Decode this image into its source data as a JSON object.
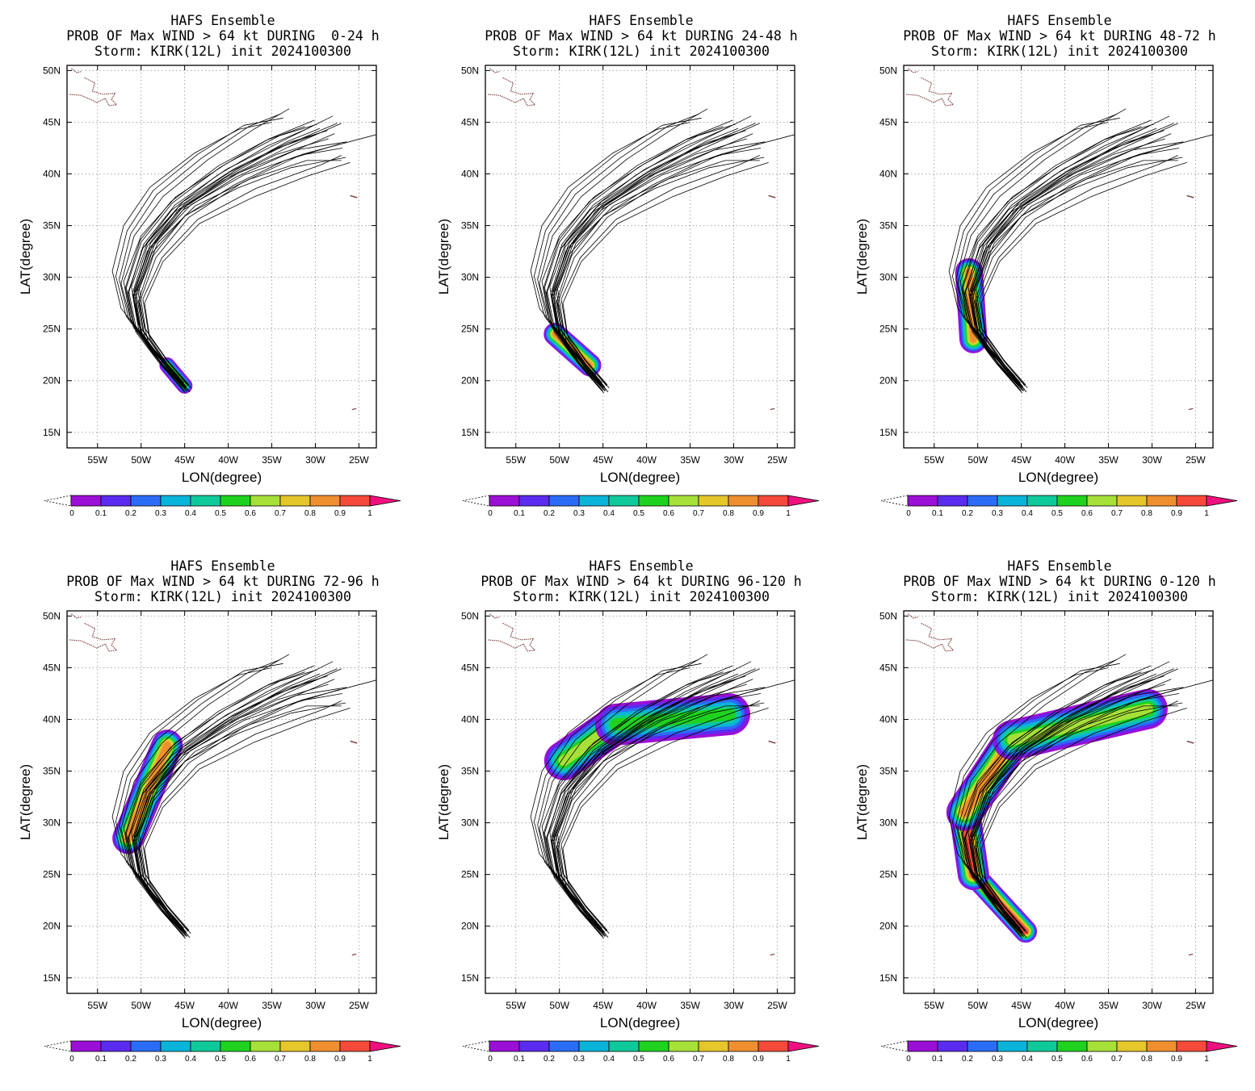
{
  "panels": [
    {
      "title_lines": [
        "HAFS Ensemble",
        "PROB OF Max WIND > 64 kt DURING  0-24 h",
        "Storm: KIRK(12L) init 2024100300"
      ],
      "xlabel": "LON(degree)",
      "ylabel": "LAT(degree)",
      "prob_fields": [
        {
          "start": [
            -45,
            19.5
          ],
          "end": [
            -47,
            21.5
          ],
          "width": 1.8,
          "peak": 0.6
        }
      ]
    },
    {
      "title_lines": [
        "HAFS Ensemble",
        "PROB OF Max WIND > 64 kt DURING 24-48 h",
        "Storm: KIRK(12L) init 2024100300"
      ],
      "xlabel": "LON(degree)",
      "ylabel": "LAT(degree)",
      "prob_fields": [
        {
          "start": [
            -46.5,
            21.5
          ],
          "end": [
            -50.5,
            24.5
          ],
          "width": 2.6,
          "peak": 0.85
        }
      ]
    },
    {
      "title_lines": [
        "HAFS Ensemble",
        "PROB OF Max WIND > 64 kt DURING 48-72 h",
        "Storm: KIRK(12L) init 2024100300"
      ],
      "xlabel": "LON(degree)",
      "ylabel": "LAT(degree)",
      "prob_fields": [
        {
          "start": [
            -50.5,
            24.0
          ],
          "end": [
            -51.0,
            30.5
          ],
          "width": 3.2,
          "peak": 0.85
        }
      ]
    },
    {
      "title_lines": [
        "HAFS Ensemble",
        "PROB OF Max WIND > 64 kt DURING 72-96 h",
        "Storm: KIRK(12L) init 2024100300"
      ],
      "xlabel": "LON(degree)",
      "ylabel": "LAT(degree)",
      "prob_fields": [
        {
          "start": [
            -51.5,
            28.5
          ],
          "end": [
            -47.0,
            37.5
          ],
          "width": 3.6,
          "peak": 0.8
        }
      ]
    },
    {
      "title_lines": [
        "HAFS Ensemble",
        "PROB OF Max WIND > 64 kt DURING 96-120 h",
        "Storm: KIRK(12L) init 2024100300"
      ],
      "xlabel": "LON(degree)",
      "ylabel": "LAT(degree)",
      "prob_fields": [
        {
          "start": [
            -49.5,
            36.0
          ],
          "end": [
            -43.5,
            39.5
          ],
          "width": 4.5,
          "peak": 0.7
        },
        {
          "start": [
            -43.5,
            39.5
          ],
          "end": [
            -30.5,
            40.5
          ],
          "width": 4.8,
          "peak": 0.6
        }
      ]
    },
    {
      "title_lines": [
        "HAFS Ensemble",
        "PROB OF Max WIND > 64 kt DURING 0-120 h",
        "Storm: KIRK(12L) init 2024100300"
      ],
      "xlabel": "LON(degree)",
      "ylabel": "LAT(degree)",
      "prob_fields": [
        {
          "start": [
            -44.5,
            19.5
          ],
          "end": [
            -50.5,
            25.0
          ],
          "width": 2.6,
          "peak": 0.9
        },
        {
          "start": [
            -50.5,
            25.0
          ],
          "end": [
            -51.5,
            31.0
          ],
          "width": 3.6,
          "peak": 0.9
        },
        {
          "start": [
            -51.5,
            31.0
          ],
          "end": [
            -46.0,
            38.0
          ],
          "width": 4.2,
          "peak": 0.85
        },
        {
          "start": [
            -46.0,
            38.0
          ],
          "end": [
            -30.5,
            41.0
          ],
          "width": 4.6,
          "peak": 0.7
        }
      ]
    }
  ],
  "lon_ticks": {
    "values": [
      -55,
      -50,
      -45,
      -40,
      -35,
      -30,
      -25
    ],
    "labels": [
      "55W",
      "50W",
      "45W",
      "40W",
      "35W",
      "30W",
      "25W"
    ]
  },
  "lat_ticks": {
    "values": [
      15,
      20,
      25,
      30,
      35,
      40,
      45,
      50
    ],
    "labels": [
      "15N",
      "20N",
      "25N",
      "30N",
      "35N",
      "40N",
      "45N",
      "50N"
    ]
  },
  "map_extent": {
    "lon_min": -58.5,
    "lon_max": -23,
    "lat_min": 13.5,
    "lat_max": 50.5
  },
  "colorbar": {
    "labels": [
      "0",
      "0.1",
      "0.2",
      "0.3",
      "0.4",
      "0.5",
      "0.6",
      "0.7",
      "0.8",
      "0.9",
      "1"
    ],
    "colors": [
      "#9b0fd6",
      "#5b2bf0",
      "#2b6cf6",
      "#0ab3d9",
      "#10c99a",
      "#1fd21f",
      "#a6e038",
      "#e5c62b",
      "#ef8f30",
      "#f54a3a"
    ],
    "over_color": "#f0107f"
  },
  "tracks": {
    "color": "#000000",
    "members": [
      [
        [
          -45.2,
          19.1
        ],
        [
          -47.8,
          21.6
        ],
        [
          -50.5,
          24.8
        ],
        [
          -51.4,
          28.6
        ],
        [
          -49.7,
          33.2
        ],
        [
          -46.1,
          37.0
        ],
        [
          -40.3,
          40.4
        ],
        [
          -34.0,
          43.1
        ],
        [
          -28.0,
          45.6
        ]
      ],
      [
        [
          -45.0,
          19.2
        ],
        [
          -47.6,
          21.5
        ],
        [
          -50.2,
          24.6
        ],
        [
          -51.0,
          28.4
        ],
        [
          -49.3,
          33.0
        ],
        [
          -45.7,
          36.8
        ],
        [
          -39.8,
          40.2
        ],
        [
          -33.6,
          42.7
        ],
        [
          -27.5,
          44.9
        ]
      ],
      [
        [
          -44.7,
          19.0
        ],
        [
          -47.0,
          21.2
        ],
        [
          -49.8,
          24.2
        ],
        [
          -50.8,
          27.9
        ],
        [
          -49.0,
          32.6
        ],
        [
          -45.2,
          36.5
        ],
        [
          -39.1,
          39.7
        ],
        [
          -32.8,
          42.1
        ],
        [
          -27.8,
          43.9
        ]
      ],
      [
        [
          -45.4,
          19.6
        ],
        [
          -48.1,
          22.1
        ],
        [
          -50.9,
          25.2
        ],
        [
          -51.8,
          29.0
        ],
        [
          -50.1,
          33.6
        ],
        [
          -46.6,
          37.3
        ],
        [
          -41.1,
          40.8
        ],
        [
          -35.3,
          43.4
        ],
        [
          -30.1,
          45.2
        ]
      ],
      [
        [
          -45.1,
          19.8
        ],
        [
          -47.9,
          22.4
        ],
        [
          -51.1,
          25.6
        ],
        [
          -52.3,
          29.4
        ],
        [
          -50.8,
          34.0
        ],
        [
          -47.5,
          37.8
        ],
        [
          -42.3,
          41.4
        ],
        [
          -36.9,
          44.4
        ],
        [
          -33.0,
          46.3
        ]
      ],
      [
        [
          -44.4,
          18.9
        ],
        [
          -46.6,
          20.9
        ],
        [
          -49.2,
          23.8
        ],
        [
          -50.2,
          27.5
        ],
        [
          -48.3,
          31.9
        ],
        [
          -44.5,
          35.8
        ],
        [
          -38.3,
          39.2
        ],
        [
          -31.5,
          41.9
        ],
        [
          -23.0,
          43.8
        ]
      ],
      [
        [
          -44.9,
          19.3
        ],
        [
          -47.3,
          21.6
        ],
        [
          -49.9,
          24.5
        ],
        [
          -50.6,
          28.0
        ],
        [
          -48.8,
          32.3
        ],
        [
          -44.9,
          36.0
        ],
        [
          -39.0,
          38.6
        ],
        [
          -32.8,
          40.6
        ],
        [
          -26.5,
          41.6
        ]
      ],
      [
        [
          -45.3,
          19.5
        ],
        [
          -48.0,
          22.0
        ],
        [
          -50.7,
          25.0
        ],
        [
          -51.5,
          28.5
        ],
        [
          -49.8,
          32.8
        ],
        [
          -46.2,
          36.3
        ],
        [
          -40.5,
          39.4
        ],
        [
          -34.4,
          41.9
        ],
        [
          -28.5,
          43.4
        ]
      ],
      [
        [
          -44.6,
          19.1
        ],
        [
          -46.8,
          21.4
        ],
        [
          -49.0,
          24.1
        ],
        [
          -49.6,
          27.5
        ],
        [
          -47.5,
          31.5
        ],
        [
          -43.3,
          35.2
        ],
        [
          -37.0,
          37.8
        ],
        [
          -30.9,
          39.8
        ],
        [
          -26.0,
          41.1
        ]
      ],
      [
        [
          -45.5,
          19.9
        ],
        [
          -48.4,
          22.6
        ],
        [
          -51.4,
          25.9
        ],
        [
          -52.5,
          29.8
        ],
        [
          -51.2,
          34.2
        ],
        [
          -48.2,
          38.0
        ],
        [
          -43.1,
          41.5
        ],
        [
          -37.6,
          44.6
        ],
        [
          -34.0,
          45.8
        ]
      ],
      [
        [
          -45.0,
          19.0
        ],
        [
          -47.4,
          21.3
        ],
        [
          -50.0,
          24.4
        ],
        [
          -50.9,
          28.2
        ],
        [
          -49.1,
          32.7
        ],
        [
          -45.4,
          36.6
        ],
        [
          -39.5,
          39.9
        ],
        [
          -33.1,
          42.6
        ],
        [
          -27.0,
          44.9
        ]
      ],
      [
        [
          -44.8,
          19.4
        ],
        [
          -47.2,
          21.8
        ],
        [
          -49.8,
          24.9
        ],
        [
          -50.6,
          28.6
        ],
        [
          -48.7,
          33.1
        ],
        [
          -44.8,
          36.9
        ],
        [
          -38.8,
          40.1
        ],
        [
          -32.3,
          42.3
        ],
        [
          -26.4,
          43.1
        ]
      ],
      [
        [
          -45.6,
          20.1
        ],
        [
          -48.6,
          22.9
        ],
        [
          -51.7,
          26.2
        ],
        [
          -52.9,
          30.1
        ],
        [
          -51.6,
          34.5
        ],
        [
          -48.6,
          38.4
        ],
        [
          -43.5,
          41.9
        ],
        [
          -38.2,
          44.7
        ],
        [
          -33.7,
          45.4
        ]
      ],
      [
        [
          -44.5,
          19.6
        ],
        [
          -47.0,
          22.0
        ],
        [
          -49.6,
          25.1
        ],
        [
          -50.4,
          28.8
        ],
        [
          -48.4,
          33.3
        ],
        [
          -44.3,
          37.0
        ],
        [
          -38.2,
          39.9
        ],
        [
          -31.8,
          41.8
        ],
        [
          -26.9,
          42.5
        ]
      ],
      [
        [
          -45.2,
          19.7
        ],
        [
          -47.7,
          22.3
        ],
        [
          -50.3,
          25.4
        ],
        [
          -51.1,
          29.1
        ],
        [
          -49.2,
          33.5
        ],
        [
          -45.2,
          37.3
        ],
        [
          -39.3,
          40.5
        ],
        [
          -33.2,
          43.0
        ],
        [
          -28.6,
          44.2
        ]
      ],
      [
        [
          -44.9,
          18.8
        ],
        [
          -47.1,
          21.0
        ],
        [
          -49.5,
          23.9
        ],
        [
          -50.3,
          27.7
        ],
        [
          -48.6,
          32.1
        ],
        [
          -45.0,
          35.9
        ],
        [
          -39.4,
          38.9
        ],
        [
          -33.5,
          41.3
        ],
        [
          -27.2,
          42.9
        ]
      ],
      [
        [
          -45.7,
          20.4
        ],
        [
          -49.0,
          23.5
        ],
        [
          -52.3,
          27.0
        ],
        [
          -53.3,
          30.6
        ],
        [
          -52.0,
          35.0
        ],
        [
          -49.0,
          38.7
        ],
        [
          -43.9,
          42.0
        ],
        [
          -38.8,
          44.3
        ],
        [
          -35.0,
          45.0
        ]
      ],
      [
        [
          -44.3,
          19.3
        ],
        [
          -46.7,
          21.6
        ],
        [
          -49.1,
          24.4
        ],
        [
          -49.8,
          27.9
        ],
        [
          -47.6,
          31.9
        ],
        [
          -43.5,
          35.6
        ],
        [
          -36.8,
          38.6
        ],
        [
          -29.3,
          40.9
        ],
        [
          -27.0,
          41.8
        ]
      ],
      [
        [
          -45.1,
          19.4
        ],
        [
          -47.6,
          21.9
        ],
        [
          -50.1,
          24.9
        ],
        [
          -50.8,
          28.7
        ],
        [
          -48.9,
          33.3
        ],
        [
          -45.0,
          37.1
        ],
        [
          -39.1,
          40.4
        ],
        [
          -33.3,
          43.1
        ],
        [
          -29.5,
          44.4
        ]
      ],
      [
        [
          -44.8,
          19.0
        ],
        [
          -47.3,
          21.3
        ],
        [
          -49.9,
          24.3
        ],
        [
          -50.9,
          28.0
        ],
        [
          -49.3,
          32.5
        ],
        [
          -45.9,
          36.3
        ],
        [
          -40.4,
          39.6
        ],
        [
          -34.6,
          42.4
        ],
        [
          -29.4,
          44.0
        ]
      ],
      [
        [
          -45.4,
          20.0
        ],
        [
          -48.2,
          22.7
        ],
        [
          -51.2,
          25.9
        ],
        [
          -52.0,
          29.6
        ],
        [
          -50.0,
          34.0
        ],
        [
          -46.0,
          37.8
        ],
        [
          -40.2,
          41.0
        ],
        [
          -34.1,
          43.7
        ],
        [
          -29.8,
          44.8
        ]
      ],
      [
        [
          -45.0,
          19.5
        ],
        [
          -47.8,
          22.2
        ],
        [
          -50.8,
          25.3
        ],
        [
          -51.7,
          29.0
        ],
        [
          -50.0,
          33.4
        ],
        [
          -46.4,
          37.2
        ],
        [
          -41.0,
          40.6
        ],
        [
          -35.5,
          43.3
        ],
        [
          -31.2,
          44.6
        ]
      ],
      [
        [
          -44.6,
          19.5
        ],
        [
          -47.0,
          21.9
        ],
        [
          -49.5,
          25.0
        ],
        [
          -50.2,
          28.9
        ],
        [
          -48.1,
          33.3
        ],
        [
          -43.8,
          36.9
        ],
        [
          -37.5,
          39.5
        ],
        [
          -31.0,
          41.3
        ],
        [
          -27.0,
          41.3
        ]
      ],
      [
        [
          -45.3,
          19.3
        ],
        [
          -47.9,
          21.7
        ],
        [
          -50.6,
          24.7
        ],
        [
          -51.5,
          28.3
        ],
        [
          -49.9,
          32.7
        ],
        [
          -46.5,
          36.5
        ],
        [
          -41.2,
          39.9
        ],
        [
          -35.5,
          42.7
        ],
        [
          -30.6,
          44.5
        ]
      ]
    ]
  }
}
